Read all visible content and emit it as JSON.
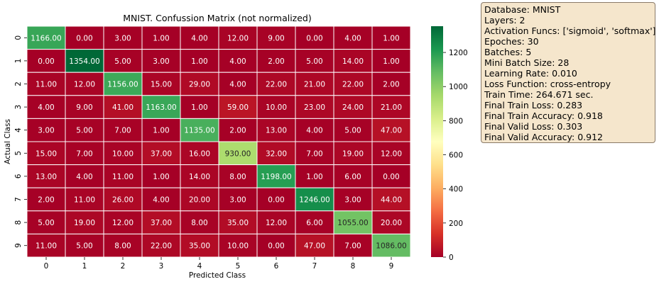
{
  "chart_data": {
    "type": "heatmap",
    "title": "MNIST. Confussion Matrix (not normalized)",
    "xlabel": "Predicted Class",
    "ylabel": "Actual Class",
    "x_categories": [
      "0",
      "1",
      "2",
      "3",
      "4",
      "5",
      "6",
      "7",
      "8",
      "9"
    ],
    "y_categories": [
      "0",
      "1",
      "2",
      "3",
      "4",
      "5",
      "6",
      "7",
      "8",
      "9"
    ],
    "values": [
      [
        1166,
        0,
        3,
        1,
        4,
        12,
        9,
        0,
        4,
        1
      ],
      [
        0,
        1354,
        5,
        3,
        1,
        4,
        2,
        5,
        14,
        1
      ],
      [
        11,
        12,
        1156,
        15,
        29,
        4,
        22,
        21,
        22,
        2
      ],
      [
        4,
        9,
        41,
        1163,
        1,
        59,
        10,
        23,
        24,
        21
      ],
      [
        3,
        5,
        7,
        1,
        1135,
        2,
        13,
        4,
        5,
        47
      ],
      [
        15,
        7,
        10,
        37,
        16,
        930,
        32,
        7,
        19,
        12
      ],
      [
        13,
        4,
        11,
        1,
        14,
        8,
        1198,
        1,
        6,
        0
      ],
      [
        2,
        11,
        26,
        4,
        20,
        3,
        0,
        1246,
        3,
        44
      ],
      [
        5,
        19,
        12,
        37,
        8,
        35,
        12,
        6,
        1055,
        20
      ],
      [
        11,
        5,
        8,
        22,
        35,
        10,
        0,
        47,
        7,
        1086
      ]
    ],
    "value_format": "2 decimals",
    "colormap": "RdYlGn",
    "vmin": 0,
    "vmax": 1354,
    "colorbar_ticks": [
      0,
      200,
      400,
      600,
      800,
      1000,
      1200
    ],
    "grid": false
  },
  "info": {
    "lines": [
      "Database: MNIST",
      "Layers: 2",
      "Activation Funcs: ['sigmoid', 'softmax']",
      "Epoches: 30",
      "Batches: 5",
      "Mini Batch Size: 28",
      "Learning Rate: 0.010",
      "Loss Function: cross-entropy",
      "Train Time: 264.671 sec.",
      "Final Train Loss: 0.283",
      "Final Train Accuracy: 0.918",
      "Final Valid Loss: 0.303",
      "Final Valid Accuracy: 0.912"
    ]
  }
}
